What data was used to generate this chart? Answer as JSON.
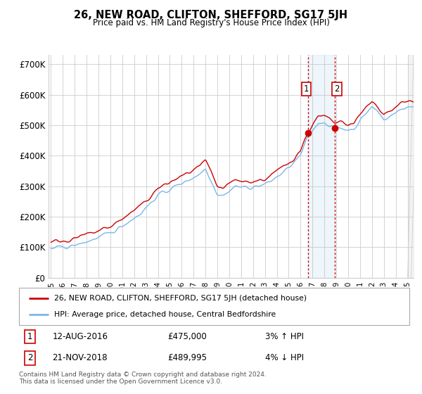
{
  "title": "26, NEW ROAD, CLIFTON, SHEFFORD, SG17 5JH",
  "subtitle": "Price paid vs. HM Land Registry's House Price Index (HPI)",
  "ylabel_ticks": [
    "£0",
    "£100K",
    "£200K",
    "£300K",
    "£400K",
    "£500K",
    "£600K",
    "£700K"
  ],
  "ytick_vals": [
    0,
    100000,
    200000,
    300000,
    400000,
    500000,
    600000,
    700000
  ],
  "ylim": [
    0,
    730000
  ],
  "xlim_start": 1994.8,
  "xlim_end": 2025.5,
  "hpi_color": "#7ab8e8",
  "price_color": "#cc0000",
  "background_color": "#ffffff",
  "grid_color": "#cccccc",
  "sale1_x": 2016.62,
  "sale1_y": 475000,
  "sale2_x": 2018.9,
  "sale2_y": 489995,
  "legend1_label": "26, NEW ROAD, CLIFTON, SHEFFORD, SG17 5JH (detached house)",
  "legend2_label": "HPI: Average price, detached house, Central Bedfordshire",
  "annotation1_date": "12-AUG-2016",
  "annotation1_price": "£475,000",
  "annotation1_hpi": "3% ↑ HPI",
  "annotation2_date": "21-NOV-2018",
  "annotation2_price": "£489,995",
  "annotation2_hpi": "4% ↓ HPI",
  "footer": "Contains HM Land Registry data © Crown copyright and database right 2024.\nThis data is licensed under the Open Government Licence v3.0."
}
